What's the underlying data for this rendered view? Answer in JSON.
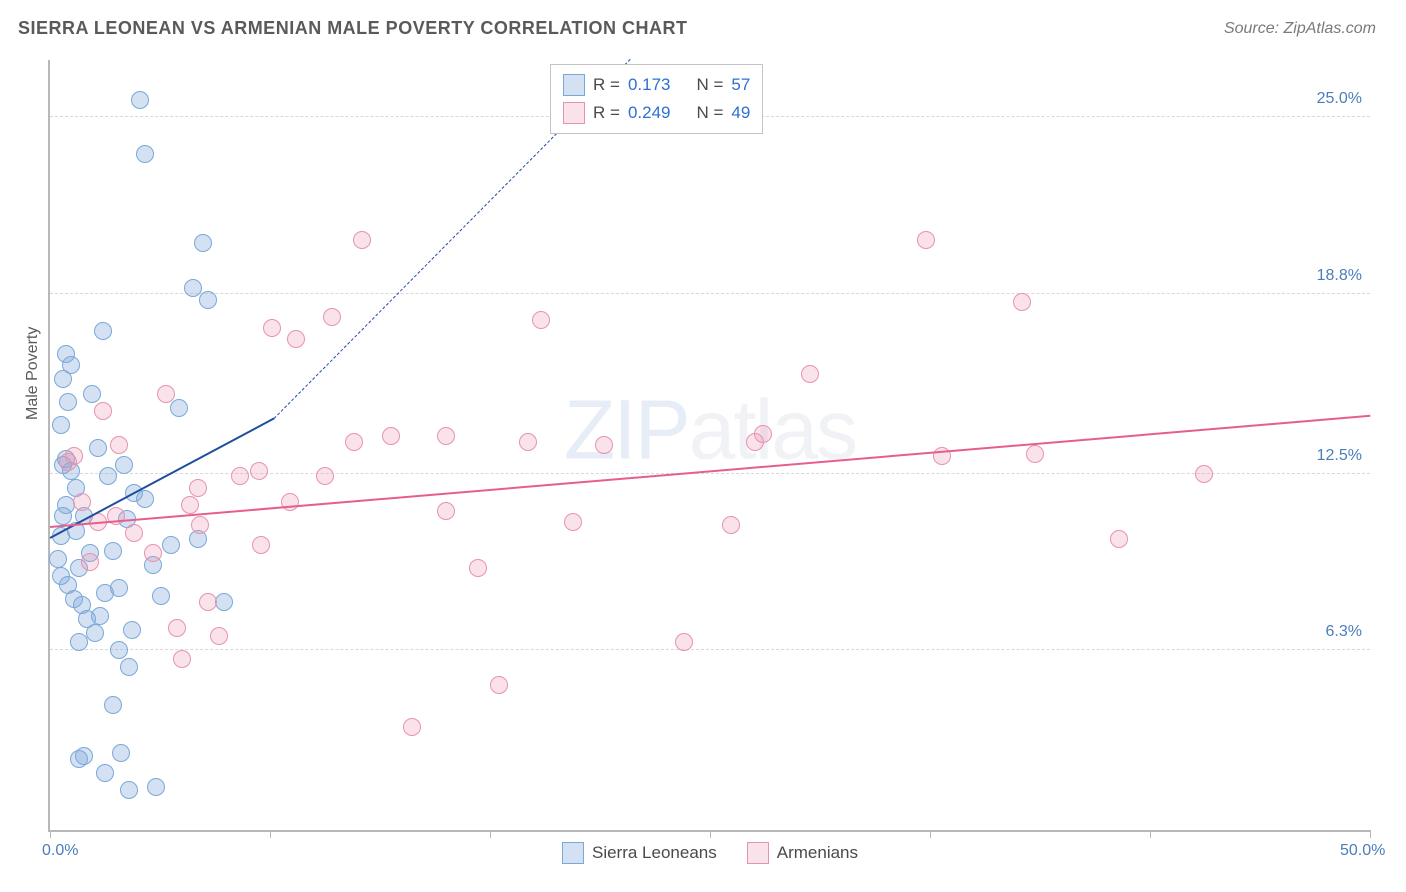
{
  "header": {
    "title": "SIERRA LEONEAN VS ARMENIAN MALE POVERTY CORRELATION CHART",
    "source": "Source: ZipAtlas.com"
  },
  "watermark": {
    "part1": "ZIP",
    "part2": "atlas"
  },
  "chart": {
    "type": "scatter",
    "y_axis_label": "Male Poverty",
    "background": "#ffffff",
    "axis_color": "#b8b8b8",
    "grid_color": "#d8d8d8",
    "tick_label_color": "#4a7ebb",
    "xlim": [
      0,
      50
    ],
    "ylim": [
      0,
      27
    ],
    "x_ticks": [
      0,
      8.33,
      16.67,
      25,
      33.33,
      41.67,
      50
    ],
    "x_tick_labels": {
      "0": "0.0%",
      "50": "50.0%"
    },
    "y_gridlines": [
      6.3,
      12.5,
      18.8,
      25.0
    ],
    "y_tick_labels": [
      "6.3%",
      "12.5%",
      "18.8%",
      "25.0%"
    ],
    "marker_radius": 9,
    "marker_border_width": 1.4,
    "series": [
      {
        "name": "Sierra Leoneans",
        "fill": "rgba(130,170,220,0.35)",
        "stroke": "#7aa8d8",
        "R_label": "R  =",
        "R_value": "0.173",
        "N_label": "N  =",
        "N_value": "57",
        "trend": {
          "color": "#1f4e9c",
          "width": 2.5,
          "solid": {
            "x1": 0,
            "y1": 10.2,
            "x2": 8.5,
            "y2": 14.4
          },
          "dashed": {
            "x1": 8.5,
            "y1": 14.4,
            "x2": 22,
            "y2": 27
          }
        },
        "points": [
          [
            0.3,
            9.5
          ],
          [
            0.4,
            10.3
          ],
          [
            0.5,
            12.8
          ],
          [
            0.6,
            13.0
          ],
          [
            0.4,
            14.2
          ],
          [
            0.7,
            15.0
          ],
          [
            0.5,
            15.8
          ],
          [
            0.8,
            16.3
          ],
          [
            0.6,
            16.7
          ],
          [
            0.4,
            8.9
          ],
          [
            0.7,
            8.6
          ],
          [
            0.9,
            8.1
          ],
          [
            1.1,
            9.2
          ],
          [
            1.0,
            10.5
          ],
          [
            1.3,
            11.0
          ],
          [
            1.5,
            9.7
          ],
          [
            1.2,
            7.9
          ],
          [
            1.4,
            7.4
          ],
          [
            1.1,
            6.6
          ],
          [
            1.7,
            6.9
          ],
          [
            1.9,
            7.5
          ],
          [
            2.1,
            8.3
          ],
          [
            2.4,
            9.8
          ],
          [
            2.6,
            8.5
          ],
          [
            2.9,
            10.9
          ],
          [
            2.2,
            12.4
          ],
          [
            3.2,
            11.8
          ],
          [
            3.4,
            25.6
          ],
          [
            3.6,
            23.7
          ],
          [
            5.8,
            20.6
          ],
          [
            5.6,
            10.2
          ],
          [
            3.9,
            9.3
          ],
          [
            3.1,
            7.0
          ],
          [
            2.6,
            6.3
          ],
          [
            3.0,
            5.7
          ],
          [
            2.4,
            4.4
          ],
          [
            4.0,
            1.5
          ],
          [
            3.0,
            1.4
          ],
          [
            2.7,
            2.7
          ],
          [
            1.3,
            2.6
          ],
          [
            1.1,
            2.5
          ],
          [
            2.1,
            2.0
          ],
          [
            6.6,
            8.0
          ],
          [
            4.9,
            14.8
          ],
          [
            6.0,
            18.6
          ],
          [
            5.4,
            19.0
          ],
          [
            1.0,
            12.0
          ],
          [
            0.6,
            11.4
          ],
          [
            0.8,
            12.6
          ],
          [
            0.5,
            11.0
          ],
          [
            3.6,
            11.6
          ],
          [
            4.6,
            10.0
          ],
          [
            2.0,
            17.5
          ],
          [
            1.8,
            13.4
          ],
          [
            2.8,
            12.8
          ],
          [
            1.6,
            15.3
          ],
          [
            4.2,
            8.2
          ]
        ]
      },
      {
        "name": "Armenians",
        "fill": "rgba(236,150,180,0.28)",
        "stroke": "#e793ae",
        "R_label": "R  =",
        "R_value": "0.249",
        "N_label": "N  =",
        "N_value": "49",
        "trend": {
          "color": "#e75e8d",
          "width": 2.5,
          "solid": {
            "x1": 0,
            "y1": 10.6,
            "x2": 50,
            "y2": 14.5
          }
        },
        "points": [
          [
            0.7,
            12.9
          ],
          [
            0.9,
            13.1
          ],
          [
            1.2,
            11.5
          ],
          [
            1.8,
            10.8
          ],
          [
            2.5,
            11.0
          ],
          [
            3.2,
            10.4
          ],
          [
            2.0,
            14.7
          ],
          [
            4.4,
            15.3
          ],
          [
            5.3,
            11.4
          ],
          [
            6.4,
            6.8
          ],
          [
            5.7,
            10.7
          ],
          [
            7.2,
            12.4
          ],
          [
            8.4,
            17.6
          ],
          [
            9.3,
            17.2
          ],
          [
            7.9,
            12.6
          ],
          [
            9.1,
            11.5
          ],
          [
            10.4,
            12.4
          ],
          [
            11.8,
            20.7
          ],
          [
            10.7,
            18.0
          ],
          [
            12.9,
            13.8
          ],
          [
            13.7,
            3.6
          ],
          [
            15.0,
            11.2
          ],
          [
            16.2,
            9.2
          ],
          [
            17.0,
            5.1
          ],
          [
            18.1,
            13.6
          ],
          [
            18.6,
            17.9
          ],
          [
            19.8,
            10.8
          ],
          [
            21.0,
            13.5
          ],
          [
            24.0,
            6.6
          ],
          [
            25.8,
            10.7
          ],
          [
            26.7,
            13.6
          ],
          [
            27.0,
            13.9
          ],
          [
            28.8,
            16.0
          ],
          [
            33.2,
            20.7
          ],
          [
            33.8,
            13.1
          ],
          [
            36.8,
            18.5
          ],
          [
            37.3,
            13.2
          ],
          [
            40.5,
            10.2
          ],
          [
            43.7,
            12.5
          ],
          [
            4.8,
            7.1
          ],
          [
            3.9,
            9.7
          ],
          [
            6.0,
            8.0
          ],
          [
            1.5,
            9.4
          ],
          [
            2.6,
            13.5
          ],
          [
            5.0,
            6.0
          ],
          [
            11.5,
            13.6
          ],
          [
            8.0,
            10.0
          ],
          [
            15.0,
            13.8
          ],
          [
            5.6,
            12.0
          ]
        ]
      }
    ]
  }
}
